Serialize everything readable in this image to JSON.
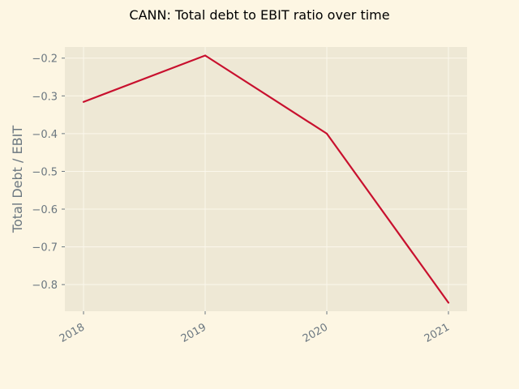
{
  "colors": {
    "figure_background": "#fdf6e3",
    "plot_background": "#eee8d5",
    "grid": "#fbf7ec",
    "line": "#c8102e",
    "tick_text": "#6b7780",
    "title_text": "#000000"
  },
  "chart_data": {
    "type": "line",
    "title": "CANN: Total debt to EBIT ratio over time",
    "xlabel": "",
    "ylabel": "Total Debt / EBIT",
    "x": [
      "2018",
      "2019",
      "2020",
      "2021"
    ],
    "series": [
      {
        "values": [
          -0.316,
          -0.193,
          -0.4,
          -0.848
        ]
      }
    ],
    "yticks": [
      "−0.2",
      "−0.3",
      "−0.4",
      "−0.5",
      "−0.6",
      "−0.7",
      "−0.8"
    ],
    "ytick_values": [
      -0.2,
      -0.3,
      -0.4,
      -0.5,
      -0.6,
      -0.7,
      -0.8
    ],
    "ylim": [
      -0.8705,
      -0.1705
    ],
    "grid": true,
    "legend": "none"
  }
}
